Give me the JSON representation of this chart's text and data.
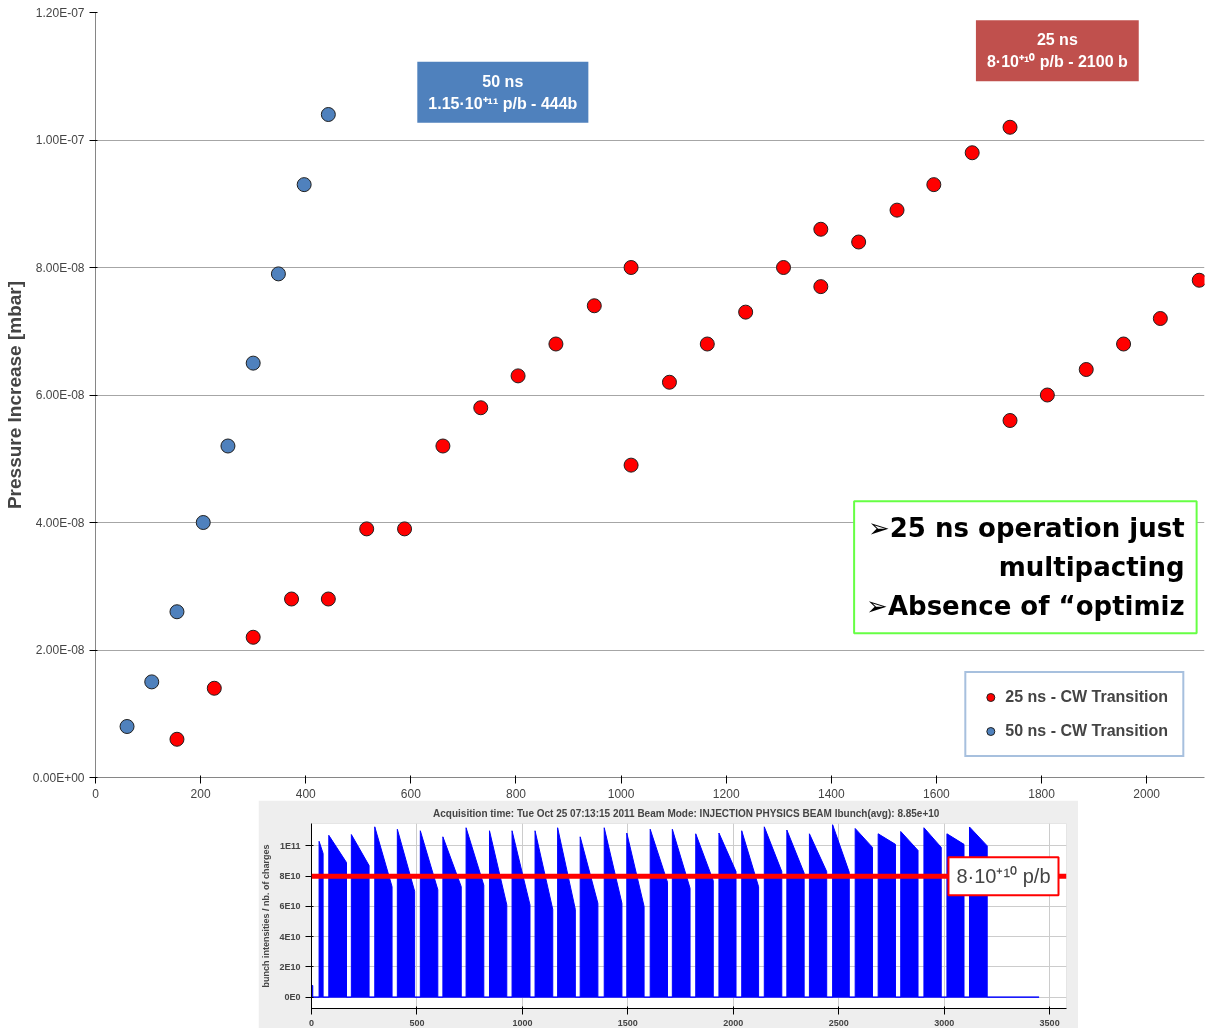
{
  "chart_data": [
    {
      "type": "scatter",
      "ylabel": "Pressure Increase [mbar]",
      "xlim": [
        0,
        2110
      ],
      "xticks": [
        0,
        200,
        400,
        600,
        800,
        1000,
        1200,
        1400,
        1600,
        1800,
        2000
      ],
      "ylim": [
        0,
        1.2e-07
      ],
      "yticks": [
        {
          "value": 0,
          "label": "0.00E+00"
        },
        {
          "value": 2e-08,
          "label": "2.00E-08"
        },
        {
          "value": 4e-08,
          "label": "4.00E-08"
        },
        {
          "value": 6e-08,
          "label": "6.00E-08"
        },
        {
          "value": 8e-08,
          "label": "8.00E-08"
        },
        {
          "value": 1e-07,
          "label": "1.00E-07"
        },
        {
          "value": 1.2e-07,
          "label": "1.20E-07"
        }
      ],
      "grid": "y",
      "legend": "bottom right",
      "marker": "circle",
      "series": [
        {
          "name": "25 ns - CW Transition",
          "color": "#ff0000",
          "x": [
            155,
            226,
            300,
            373,
            443,
            516,
            588,
            661,
            733,
            804,
            876,
            949,
            1019,
            1019,
            1092,
            1164,
            1237,
            1309,
            1380,
            1380,
            1452,
            1525,
            1595,
            1668,
            1740,
            1740,
            1811,
            1885,
            1956,
            2026,
            2100
          ],
          "values": [
            6e-09,
            1.4e-08,
            2.2e-08,
            2.8e-08,
            2.8e-08,
            3.9e-08,
            3.9e-08,
            5.2e-08,
            5.8e-08,
            6.3e-08,
            6.8e-08,
            7.4e-08,
            8e-08,
            4.9e-08,
            6.2e-08,
            6.8e-08,
            7.3e-08,
            8e-08,
            8.6e-08,
            7.7e-08,
            8.4e-08,
            8.9e-08,
            9.3e-08,
            9.8e-08,
            1.02e-07,
            5.6e-08,
            6e-08,
            6.4e-08,
            6.8e-08,
            7.2e-08,
            7.8e-08
          ]
        },
        {
          "name": "50 ns - CW Transition",
          "color": "#4f81bd",
          "x": [
            60,
            107,
            155,
            205,
            252,
            300,
            348,
            397,
            443
          ],
          "values": [
            8e-09,
            1.5e-08,
            2.6e-08,
            4e-08,
            5.2e-08,
            6.5e-08,
            7.9e-08,
            9.3e-08,
            1.04e-07
          ]
        }
      ],
      "annotations": [
        "50 ns\n1.15·10⁺¹¹ p/b - 444b",
        "25 ns\n8·10⁺¹⁰ p/b - 2100 b",
        "➢25 ns operation just\nmultipacting\n➢Absence of “optimiz"
      ]
    },
    {
      "type": "area",
      "title": "Acquisition time: Tue Oct 25 07:13:15 2011  Beam Mode: INJECTION PHYSICS BEAM  Ibunch(avg): 8.85e+10",
      "ylabel": "bunch intensities / nb. of charges",
      "xlim": [
        0,
        3580
      ],
      "xticks": [
        0,
        500,
        1000,
        1500,
        2000,
        2500,
        3000,
        3500
      ],
      "ylim": [
        -7500000000.0,
        114800000000.0
      ],
      "yticks": [
        {
          "value": 0,
          "label": "0E0"
        },
        {
          "value": 20000000000.0,
          "label": "2E10"
        },
        {
          "value": 40000000000.0,
          "label": "4E10"
        },
        {
          "value": 60000000000.0,
          "label": "6E10"
        },
        {
          "value": 80000000000.0,
          "label": "8E10"
        },
        {
          "value": 100000000000.0,
          "label": "1E11"
        }
      ],
      "grid": true,
      "series": [
        {
          "color": "#0000ff",
          "x": [
            0,
            0,
            6,
            6,
            36,
            36,
            55,
            55,
            82,
            82,
            166,
            166,
            189,
            189,
            273,
            273,
            300,
            300,
            382,
            382,
            407,
            407,
            489,
            489,
            516,
            516,
            599,
            599,
            623,
            623,
            710,
            710,
            733,
            733,
            817,
            817,
            844,
            844,
            926,
            926,
            951,
            951,
            1036,
            1036,
            1060,
            1060,
            1144,
            1144,
            1167,
            1167,
            1251,
            1251,
            1274,
            1274,
            1358,
            1358,
            1388,
            1388,
            1472,
            1472,
            1495,
            1495,
            1577,
            1577,
            1606,
            1606,
            1688,
            1688,
            1711,
            1711,
            1795,
            1795,
            1822,
            1822,
            1905,
            1905,
            1932,
            1932,
            2013,
            2013,
            2040,
            2040,
            2120,
            2120,
            2147,
            2147,
            2230,
            2230,
            2254,
            2254,
            2336,
            2336,
            2361,
            2361,
            2443,
            2443,
            2471,
            2471,
            2550,
            2550,
            2578,
            2578,
            2660,
            2660,
            2687,
            2687,
            2769,
            2769,
            2794,
            2794,
            2876,
            2876,
            2904,
            2904,
            2986,
            2986,
            3013,
            3013,
            3094,
            3094,
            3120,
            3120,
            3204,
            3204,
            3450
          ],
          "values": [
            0,
            7700000000.0,
            7700000000.0,
            0,
            0,
            103000000000.0,
            95000000000.0,
            0,
            0,
            107000000000.0,
            89000000000.0,
            0,
            0,
            107500000000.0,
            87000000000.0,
            0,
            0,
            112600000000.0,
            73000000000.0,
            0,
            0,
            111000000000.0,
            70000000000.0,
            0,
            0,
            110000000000.0,
            71000000000.0,
            0,
            0,
            106000000000.0,
            73000000000.0,
            0,
            0,
            112000000000.0,
            74000000000.0,
            0,
            0,
            110000000000.0,
            61000000000.0,
            0,
            0,
            110000000000.0,
            61000000000.0,
            0,
            0,
            110000000000.0,
            58000000000.0,
            0,
            0,
            112000000000.0,
            58000000000.0,
            0,
            0,
            106000000000.0,
            62000000000.0,
            0,
            0,
            112000000000.0,
            62000000000.0,
            0,
            0,
            108500000000.0,
            60000000000.0,
            0,
            0,
            111000000000.0,
            76000000000.0,
            0,
            0,
            111000000000.0,
            72000000000.0,
            0,
            0,
            108000000000.0,
            77000000000.0,
            0,
            0,
            108500000000.0,
            83000000000.0,
            0,
            0,
            110000000000.0,
            73000000000.0,
            0,
            0,
            112600000000.0,
            83000000000.0,
            0,
            0,
            110500000000.0,
            82000000000.0,
            0,
            0,
            108000000000.0,
            83000000000.0,
            0,
            0,
            114000000000.0,
            82500000000.0,
            0,
            0,
            111500000000.0,
            99000000000.0,
            0,
            0,
            108000000000.0,
            101000000000.0,
            0,
            0,
            109500000000.0,
            97000000000.0,
            0,
            0,
            112000000000.0,
            99000000000.0,
            0,
            0,
            108000000000.0,
            101000000000.0,
            0,
            0,
            112500000000.0,
            100000000000.0,
            0,
            0
          ]
        }
      ],
      "ref_lines": [
        {
          "axis": "y",
          "value": 80000000000.0,
          "label": "8·10⁺¹⁰ p/b",
          "color": "#ff0000"
        }
      ]
    }
  ]
}
